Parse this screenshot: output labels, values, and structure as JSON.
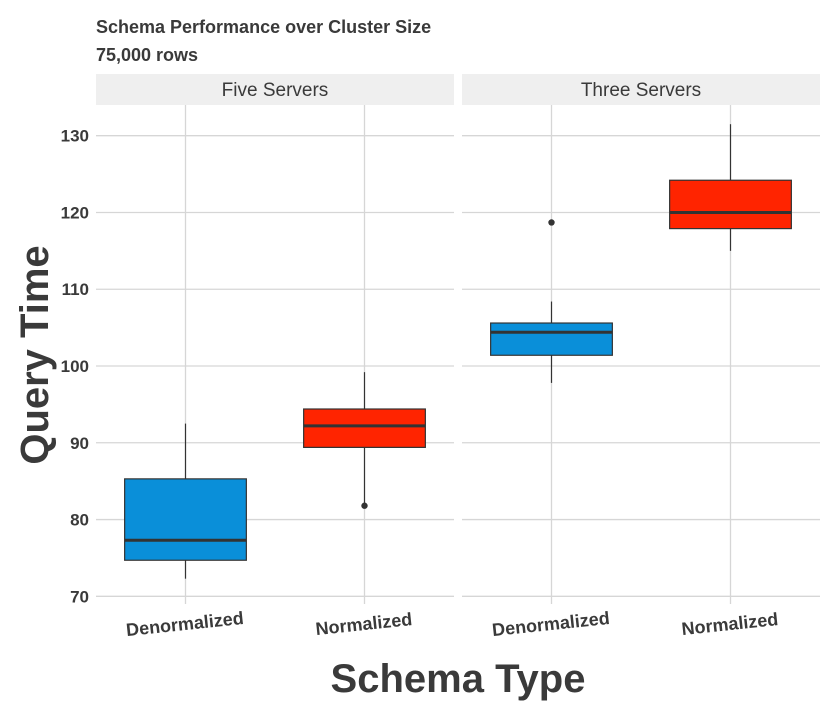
{
  "chart_data": {
    "type": "boxplot",
    "title": "Schema Performance over Cluster Size",
    "subtitle": "75,000 rows",
    "xlabel": "Schema Type",
    "ylabel": "Query Time",
    "ylim": [
      69,
      134
    ],
    "yticks": [
      70,
      80,
      90,
      100,
      110,
      120,
      130
    ],
    "ytick_labels": [
      "70",
      "80",
      "90",
      "100",
      "110",
      "120",
      "130"
    ],
    "categories": [
      "Denormalized",
      "Normalized"
    ],
    "colors": {
      "Denormalized": "#0a8fd9",
      "Normalized": "#ff2400"
    },
    "grid": true,
    "panels": [
      {
        "strip": "Five Servers",
        "boxes": [
          {
            "category": "Denormalized",
            "min": 72.3,
            "q1": 74.7,
            "median": 77.3,
            "q3": 85.3,
            "max": 92.5,
            "outliers": []
          },
          {
            "category": "Normalized",
            "min": 82.1,
            "q1": 89.4,
            "median": 92.2,
            "q3": 94.4,
            "max": 99.2,
            "outliers": [
              81.8
            ]
          }
        ]
      },
      {
        "strip": "Three Servers",
        "boxes": [
          {
            "category": "Denormalized",
            "min": 97.8,
            "q1": 101.4,
            "median": 104.4,
            "q3": 105.6,
            "max": 108.4,
            "outliers": [
              118.7
            ]
          },
          {
            "category": "Normalized",
            "min": 115.0,
            "q1": 117.9,
            "median": 120.0,
            "q3": 124.2,
            "max": 131.5,
            "outliers": []
          }
        ]
      }
    ]
  }
}
